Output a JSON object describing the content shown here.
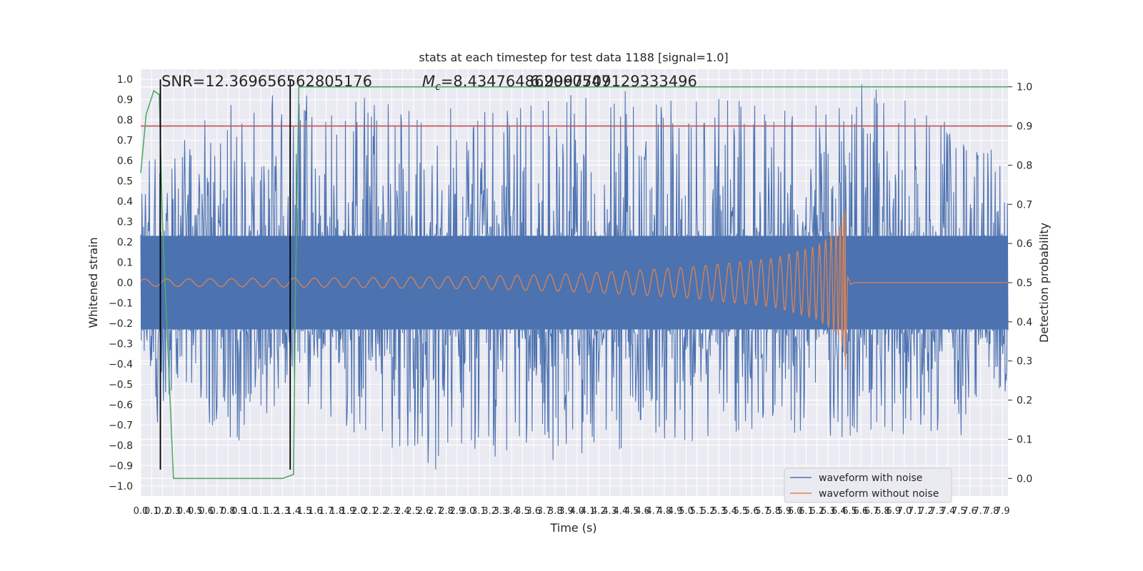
{
  "chart_data": {
    "type": "line",
    "title": "stats at each timestep for test data 1188 [signal=1.0]",
    "xlabel": "Time (s)",
    "ylabel": "Whitened strain",
    "ylabel_right": "Detection probability",
    "xlim": [
      0.0,
      7.95
    ],
    "ylim": [
      -1.05,
      1.05
    ],
    "ylim_right": [
      -0.045,
      1.045
    ],
    "x_ticks": [
      0.0,
      0.1,
      0.2,
      0.3,
      0.4,
      0.5,
      0.6,
      0.7,
      0.8,
      0.9,
      1.0,
      1.1,
      1.2,
      1.3,
      1.4,
      1.5,
      1.6,
      1.7,
      1.8,
      1.9,
      2.0,
      2.1,
      2.2,
      2.3,
      2.4,
      2.5,
      2.6,
      2.7,
      2.8,
      2.9,
      3.0,
      3.1,
      3.2,
      3.3,
      3.4,
      3.5,
      3.6,
      3.7,
      3.8,
      3.9,
      4.0,
      4.1,
      4.2,
      4.3,
      4.4,
      4.5,
      4.6,
      4.7,
      4.8,
      4.9,
      5.0,
      5.1,
      5.2,
      5.3,
      5.4,
      5.5,
      5.6,
      5.7,
      5.8,
      5.9,
      6.0,
      6.1,
      6.2,
      6.3,
      6.4,
      6.5,
      6.6,
      6.7,
      6.8,
      6.9,
      7.0,
      7.1,
      7.2,
      7.3,
      7.4,
      7.5,
      7.6,
      7.7,
      7.8,
      7.9
    ],
    "x_tick_labels": [
      "0.0",
      "0.1",
      "0.2",
      "0.3",
      "0.4",
      "0.5",
      "0.6",
      "0.7",
      "0.8",
      "0.9",
      "1.0",
      "1.1",
      "1.2",
      "1.3",
      "1.4",
      "1.5",
      "1.6",
      "1.7",
      "1.8",
      "1.9",
      "2.0",
      "2.1",
      "2.2",
      "2.3",
      "2.4",
      "2.5",
      "2.6",
      "2.7",
      "2.8",
      "2.9",
      "3.0",
      "3.1",
      "3.2",
      "3.3",
      "3.4",
      "3.5",
      "3.6",
      "3.7",
      "3.8",
      "3.9",
      "4.0",
      "4.1",
      "4.2",
      "4.3",
      "4.4",
      "4.5",
      "4.6",
      "4.7",
      "4.8",
      "4.9",
      "5.0",
      "5.1",
      "5.2",
      "5.3",
      "5.4",
      "5.5",
      "5.6",
      "5.7",
      "5.8",
      "5.9",
      "6.0",
      "6.1",
      "6.2",
      "6.3",
      "6.4",
      "6.5",
      "6.6",
      "6.7",
      "6.8",
      "6.9",
      "7.0",
      "7.1",
      "7.2",
      "7.3",
      "7.4",
      "7.5",
      "7.6",
      "7.7",
      "7.8",
      "7.9"
    ],
    "y_ticks": [
      1.0,
      0.9,
      0.8,
      0.7,
      0.6,
      0.5,
      0.4,
      0.3,
      0.2,
      0.1,
      0.0,
      -0.1,
      -0.2,
      -0.3,
      -0.4,
      -0.5,
      -0.6,
      -0.7,
      -0.8,
      -0.9,
      -1.0
    ],
    "y_tick_labels": [
      "1.0",
      "0.9",
      "0.8",
      "0.7",
      "0.6",
      "0.5",
      "0.4",
      "0.3",
      "0.2",
      "0.1",
      "0.0",
      "−0.1",
      "−0.2",
      "−0.3",
      "−0.4",
      "−0.5",
      "−0.6",
      "−0.7",
      "−0.8",
      "−0.9",
      "−1.0"
    ],
    "y_right_ticks": [
      1.0,
      0.9,
      0.8,
      0.7,
      0.6,
      0.5,
      0.4,
      0.3,
      0.2,
      0.1,
      0.0
    ],
    "y_right_tick_labels": [
      "1.0",
      "0.9",
      "0.8",
      "0.7",
      "0.6",
      "0.5",
      "0.4",
      "0.3",
      "0.2",
      "0.1",
      "0.0"
    ],
    "grid": true,
    "legend_position": "lower-right",
    "series": [
      {
        "name": "waveform with noise",
        "color": "#4c72b0",
        "axis": "left",
        "x_range": [
          0.0,
          7.95
        ],
        "envelope_max": [
          [
            0.0,
            0.44
          ],
          [
            0.08,
            0.62
          ],
          [
            0.2,
            0.6
          ],
          [
            0.6,
            0.86
          ],
          [
            1.5,
            0.95
          ],
          [
            1.8,
            0.95
          ],
          [
            3.1,
            0.86
          ],
          [
            3.5,
            0.95
          ],
          [
            4.4,
            0.95
          ],
          [
            6.3,
            0.88
          ],
          [
            6.6,
            1.0
          ],
          [
            7.2,
            0.85
          ],
          [
            7.95,
            0.62
          ]
        ],
        "envelope_min": [
          [
            0.0,
            -0.28
          ],
          [
            0.15,
            -0.72
          ],
          [
            0.3,
            -0.55
          ],
          [
            0.8,
            -0.85
          ],
          [
            1.3,
            -0.6
          ],
          [
            2.7,
            -0.92
          ],
          [
            3.2,
            -0.88
          ],
          [
            3.9,
            -0.87
          ],
          [
            5.5,
            -0.75
          ],
          [
            6.8,
            -0.77
          ],
          [
            7.5,
            -0.78
          ],
          [
            7.95,
            -0.52
          ]
        ],
        "dense_band": 0.23
      },
      {
        "name": "waveform without noise",
        "color": "#dd8452",
        "axis": "left",
        "x_range": [
          0.0,
          7.95
        ],
        "amplitude": [
          [
            0.0,
            0.018
          ],
          [
            1.5,
            0.022
          ],
          [
            3.0,
            0.03
          ],
          [
            4.0,
            0.045
          ],
          [
            5.0,
            0.075
          ],
          [
            5.8,
            0.12
          ],
          [
            6.2,
            0.18
          ],
          [
            6.4,
            0.26
          ],
          [
            6.45,
            0.36
          ],
          [
            6.46,
            0.0
          ]
        ],
        "merger_time": 6.46,
        "merger_min": -0.43
      },
      {
        "color": "#55a868",
        "axis": "right",
        "x": [
          0.0,
          0.05,
          0.12,
          0.17,
          0.2,
          0.3,
          0.44,
          0.55,
          1.0,
          1.1,
          1.2,
          1.3,
          1.4,
          1.42,
          1.45
        ],
        "y": [
          0.78,
          0.93,
          0.99,
          0.98,
          0.65,
          0.0,
          0.0,
          0.0,
          0.0,
          0.0,
          0.0,
          0.0,
          0.01,
          0.5,
          1.0
        ],
        "x_end": 7.95,
        "y_end": 1.0
      }
    ],
    "threshold": {
      "color": "#c44e52",
      "axis": "right",
      "value": 0.9
    },
    "vertical_lines": [
      {
        "x": 0.18,
        "ymin": -0.92,
        "ymax": 1.0,
        "color": "#000000"
      },
      {
        "x": 1.37,
        "ymin": -0.92,
        "ymax": 1.0,
        "color": "#000000"
      }
    ],
    "annotations": {
      "snr": "SNR=12.369656562805176",
      "mc_prefix": "M",
      "mc_sub": "c",
      "mc_value": "=8.434764862060547",
      "overlap": "6.9997709129333496"
    }
  }
}
